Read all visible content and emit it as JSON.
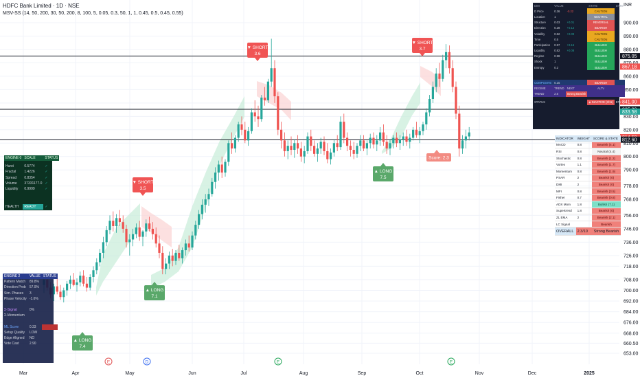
{
  "header": {
    "title": "HDFC Bank Limited · 1D · NSE",
    "indicator": "MSV-SS (14, 50, 200, 30, 50, 200, 8, 100, 5, 0.05, 0.3, 50, 1, 1, 0.45, 0.5, 0.45, 0.55)",
    "currency": "INR"
  },
  "colors": {
    "up": "#26a69a",
    "down": "#ef5350",
    "bull_band": "#c8ecd8",
    "bear_band": "#fbd3d3",
    "long_label": "#5aa86a",
    "short_label": "#f05454"
  },
  "chart_data": {
    "type": "candlestick",
    "x_ticks": [
      "Mar",
      "Apr",
      "May",
      "Jun",
      "Jul",
      "Aug",
      "Sep",
      "Oct",
      "Nov",
      "Dec",
      "2025"
    ],
    "y_ticks": [
      653.0,
      660.5,
      668.0,
      676.0,
      684.0,
      692.0,
      700.0,
      708.0,
      718.0,
      726.0,
      736.0,
      746.0,
      756.0,
      768.0,
      778.0,
      790.0,
      800.0,
      810.0,
      820.0,
      830.0,
      840.0,
      850.0,
      860.0,
      870.0,
      880.0,
      890.0,
      900.0
    ],
    "price_tags": [
      {
        "value": "875.05",
        "style": "dark"
      },
      {
        "value": "867.18",
        "style": "red"
      },
      {
        "value": "841.00",
        "style": "red"
      },
      {
        "value": "835.30",
        "style": "dark"
      },
      {
        "value": "833.58",
        "style": "green"
      },
      {
        "value": "814.50",
        "style": "red"
      },
      {
        "value": "812.60",
        "style": "dark"
      }
    ],
    "horizontal_lines": [
      875.05,
      835.3,
      812.6
    ],
    "ohlc": [
      [
        704,
        712,
        698,
        708
      ],
      [
        708,
        711,
        700,
        702
      ],
      [
        702,
        706,
        694,
        697
      ],
      [
        697,
        705,
        692,
        703
      ],
      [
        703,
        709,
        697,
        699
      ],
      [
        699,
        704,
        693,
        695
      ],
      [
        695,
        702,
        691,
        700
      ],
      [
        700,
        707,
        696,
        705
      ],
      [
        705,
        711,
        701,
        708
      ],
      [
        708,
        713,
        703,
        704
      ],
      [
        704,
        709,
        699,
        706
      ],
      [
        706,
        714,
        703,
        711
      ],
      [
        711,
        715,
        703,
        705
      ],
      [
        705,
        710,
        699,
        702
      ],
      [
        702,
        712,
        700,
        710
      ],
      [
        710,
        718,
        706,
        715
      ],
      [
        715,
        724,
        712,
        721
      ],
      [
        721,
        731,
        718,
        728
      ],
      [
        728,
        740,
        724,
        736
      ],
      [
        736,
        748,
        733,
        745
      ],
      [
        745,
        756,
        742,
        752
      ],
      [
        752,
        759,
        744,
        748
      ],
      [
        748,
        757,
        743,
        754
      ],
      [
        754,
        760,
        748,
        751
      ],
      [
        751,
        756,
        743,
        746
      ],
      [
        746,
        749,
        732,
        736
      ],
      [
        736,
        742,
        726,
        738
      ],
      [
        738,
        746,
        733,
        742
      ],
      [
        742,
        750,
        739,
        747
      ],
      [
        747,
        752,
        737,
        740
      ],
      [
        740,
        745,
        733,
        744
      ],
      [
        744,
        753,
        740,
        750
      ],
      [
        750,
        755,
        744,
        746
      ],
      [
        746,
        751,
        738,
        742
      ],
      [
        742,
        747,
        732,
        735
      ],
      [
        735,
        741,
        724,
        728
      ],
      [
        728,
        733,
        712,
        716
      ],
      [
        716,
        724,
        712,
        720
      ],
      [
        720,
        729,
        716,
        726
      ],
      [
        726,
        731,
        718,
        722
      ],
      [
        722,
        730,
        719,
        728
      ],
      [
        728,
        734,
        722,
        724
      ],
      [
        724,
        732,
        720,
        730
      ],
      [
        730,
        738,
        726,
        735
      ],
      [
        735,
        741,
        729,
        732
      ],
      [
        732,
        744,
        730,
        741
      ],
      [
        741,
        752,
        738,
        749
      ],
      [
        749,
        760,
        746,
        757
      ],
      [
        757,
        768,
        753,
        764
      ],
      [
        764,
        772,
        758,
        768
      ],
      [
        768,
        776,
        763,
        772
      ],
      [
        772,
        784,
        770,
        781
      ],
      [
        781,
        792,
        776,
        788
      ],
      [
        788,
        797,
        782,
        794
      ],
      [
        794,
        800,
        784,
        788
      ],
      [
        788,
        798,
        785,
        796
      ],
      [
        796,
        812,
        793,
        810
      ],
      [
        810,
        818,
        802,
        806
      ],
      [
        806,
        816,
        803,
        814
      ],
      [
        814,
        826,
        811,
        824
      ],
      [
        824,
        830,
        816,
        820
      ],
      [
        820,
        826,
        810,
        812
      ],
      [
        812,
        822,
        808,
        819
      ],
      [
        819,
        836,
        817,
        833
      ],
      [
        833,
        842,
        826,
        830
      ],
      [
        830,
        838,
        822,
        828
      ],
      [
        828,
        846,
        826,
        844
      ],
      [
        844,
        852,
        838,
        842
      ],
      [
        842,
        858,
        840,
        856
      ],
      [
        856,
        888,
        852,
        866
      ],
      [
        866,
        872,
        840,
        845
      ],
      [
        845,
        848,
        816,
        820
      ],
      [
        820,
        826,
        806,
        812
      ],
      [
        812,
        818,
        800,
        804
      ],
      [
        804,
        812,
        798,
        808
      ],
      [
        808,
        815,
        801,
        805
      ],
      [
        805,
        813,
        799,
        810
      ],
      [
        810,
        816,
        802,
        806
      ],
      [
        806,
        811,
        796,
        800
      ],
      [
        800,
        808,
        795,
        804
      ],
      [
        804,
        818,
        802,
        815
      ],
      [
        815,
        820,
        804,
        808
      ],
      [
        808,
        812,
        800,
        802
      ],
      [
        802,
        810,
        796,
        806
      ],
      [
        806,
        814,
        802,
        811
      ],
      [
        811,
        815,
        801,
        804
      ],
      [
        804,
        810,
        795,
        798
      ],
      [
        798,
        806,
        794,
        803
      ],
      [
        803,
        813,
        800,
        810
      ],
      [
        810,
        816,
        804,
        807
      ],
      [
        807,
        830,
        805,
        826
      ],
      [
        826,
        832,
        810,
        814
      ],
      [
        814,
        818,
        804,
        808
      ],
      [
        808,
        812,
        800,
        805
      ],
      [
        805,
        811,
        798,
        802
      ],
      [
        802,
        810,
        799,
        808
      ],
      [
        808,
        816,
        804,
        812
      ],
      [
        812,
        816,
        804,
        806
      ],
      [
        806,
        812,
        801,
        810
      ],
      [
        810,
        817,
        806,
        814
      ],
      [
        814,
        818,
        806,
        809
      ],
      [
        809,
        816,
        804,
        812
      ],
      [
        812,
        822,
        808,
        818
      ],
      [
        818,
        824,
        808,
        811
      ],
      [
        811,
        816,
        802,
        806
      ],
      [
        806,
        813,
        801,
        810
      ],
      [
        810,
        816,
        806,
        814
      ],
      [
        814,
        818,
        807,
        810
      ],
      [
        810,
        816,
        805,
        813
      ],
      [
        813,
        818,
        808,
        815
      ],
      [
        815,
        820,
        808,
        811
      ],
      [
        811,
        817,
        806,
        814
      ],
      [
        814,
        822,
        812,
        820
      ],
      [
        820,
        826,
        814,
        816
      ],
      [
        816,
        822,
        810,
        819
      ],
      [
        819,
        826,
        816,
        824
      ],
      [
        824,
        836,
        820,
        833
      ],
      [
        833,
        846,
        830,
        843
      ],
      [
        843,
        856,
        840,
        852
      ],
      [
        852,
        866,
        848,
        862
      ],
      [
        862,
        870,
        852,
        858
      ],
      [
        858,
        876,
        856,
        872
      ],
      [
        872,
        884,
        866,
        878
      ],
      [
        878,
        883,
        862,
        866
      ],
      [
        866,
        872,
        848,
        852
      ],
      [
        852,
        856,
        828,
        832
      ],
      [
        832,
        838,
        800,
        806
      ],
      [
        806,
        816,
        802,
        812
      ],
      [
        812,
        820,
        806,
        815
      ],
      [
        815,
        822,
        812,
        818
      ]
    ],
    "signals": [
      {
        "side": "LONG",
        "score": "7.4"
      },
      {
        "side": "SHORT",
        "score": "3.5"
      },
      {
        "side": "LONG",
        "score": "7.1"
      },
      {
        "side": "SHORT",
        "score": "3.6"
      },
      {
        "side": "LONG",
        "score": "7.5"
      },
      {
        "side": "SHORT",
        "score": "3.7"
      }
    ],
    "score_label": "Score: 2.3",
    "events": [
      "E",
      "D",
      "E",
      "E"
    ]
  },
  "engine0": {
    "title": [
      "ENGINE 0",
      "SCALE",
      "STATUS"
    ],
    "rows": [
      [
        "Hurst",
        "0.5774",
        "✓"
      ],
      [
        "Fractal",
        "1.4226",
        "✓"
      ],
      [
        "Spread",
        "0.8354",
        "✓"
      ],
      [
        "Volume",
        "37331177.0",
        "✓"
      ],
      [
        "Liquidity",
        "0.9999",
        "✓"
      ]
    ],
    "footer": [
      "HEALTH",
      "READY",
      "✓"
    ]
  },
  "engine2": {
    "title": [
      "ENGINE 2",
      "VALUE",
      "STATUS"
    ],
    "rows": [
      [
        "Pattern Match",
        "89.8%",
        ""
      ],
      [
        "Direction Prob",
        "57.9%",
        ""
      ],
      [
        "Sim. Phases",
        "3",
        ""
      ],
      [
        "Phase Velocity",
        "-1.6%",
        ""
      ],
      [
        "",
        "",
        ""
      ],
      [
        "Σ-Signal",
        "0%",
        ""
      ],
      [
        "Σ-Momentum",
        "",
        ""
      ],
      [
        "",
        "",
        ""
      ],
      [
        "ML Score",
        "0.33",
        ""
      ],
      [
        "Setup Quality",
        "LOW",
        ""
      ],
      [
        "Edge Aligned",
        "NO",
        ""
      ],
      [
        "Vote Cast",
        "2.90",
        ""
      ]
    ]
  },
  "dim_table": {
    "head": [
      "DIM",
      "VALUE",
      "",
      "STATE",
      "DATE"
    ],
    "rows": [
      [
        "D Price",
        "0.36",
        "-0.22",
        "CAUTION",
        ""
      ],
      [
        "Location",
        "1",
        "",
        "NEUTRAL",
        ""
      ],
      [
        "Structure",
        "0.03",
        "+0.01",
        "REVERSAL",
        ""
      ],
      [
        "Direction",
        "0.28",
        "+0.12",
        "BEARISH",
        ""
      ],
      [
        "Volatility",
        "0.82",
        "+0.09",
        "CAUTION",
        ""
      ],
      [
        "Time",
        "0.5",
        "",
        "CAUTION",
        ""
      ],
      [
        "Participation",
        "0.97",
        "+0.15",
        "BULLISH",
        ""
      ],
      [
        "Liquidity",
        "0.82",
        "+0.08",
        "BULLISH",
        ""
      ],
      [
        "Regime",
        "0.98",
        "",
        "BULLISH",
        ""
      ],
      [
        "Shock",
        "1",
        "",
        "BULLISH",
        ""
      ],
      [
        "Entropy",
        "0.2",
        "",
        "BULLISH",
        ""
      ]
    ],
    "composite": [
      "COMPOSITE",
      "0.15",
      "",
      "BEARISH",
      ""
    ],
    "regime": [
      "REGIME",
      "TREND",
      "NEXT",
      "ALTV",
      ""
    ],
    "trend": [
      "TREND",
      "2.5",
      "Strong Bearish",
      "",
      ""
    ],
    "status": [
      "STATUS",
      "",
      "",
      "◈ INACTIVE (3/11)",
      "BTY"
    ]
  },
  "indicator_table": {
    "head": [
      "INDICATOR",
      "WEIGHT",
      "SCORE & STATE"
    ],
    "rows": [
      [
        "MACD",
        "0.8",
        "Bearish (4.1)",
        "bear"
      ],
      [
        "RSI",
        "0.8",
        "Neutral (4.4)",
        "neu"
      ],
      [
        "Stochastic",
        "0.8",
        "Bearish (1.2)",
        "bear"
      ],
      [
        "Vortex",
        "1.1",
        "Bearish (1.7)",
        "bear"
      ],
      [
        "Momentum",
        "0.8",
        "Bearish (1.9)",
        "bear"
      ],
      [
        "PSAR",
        "2",
        "Bearish (0)",
        "bear"
      ],
      [
        "DMI",
        "2",
        "Bearish (0)",
        "bear"
      ],
      [
        "MFI",
        "0.8",
        "Bearish (3.5)",
        "bear"
      ],
      [
        "Fisher",
        "0.7",
        "Bearish (0.8)",
        "bear"
      ],
      [
        "ADX Mom",
        "1.8",
        "Bullish (7.1)",
        "bull"
      ],
      [
        "Supertrend",
        "1.8",
        "Bearish (0)",
        "bear"
      ],
      [
        "ZL EMA",
        "2",
        "Bearish (2.1)",
        "bear"
      ],
      [
        "LC Signal",
        "",
        "Bearish",
        "bear"
      ]
    ],
    "overall": [
      "OVERALL",
      "2.3/10",
      "Strong Bearish"
    ]
  }
}
